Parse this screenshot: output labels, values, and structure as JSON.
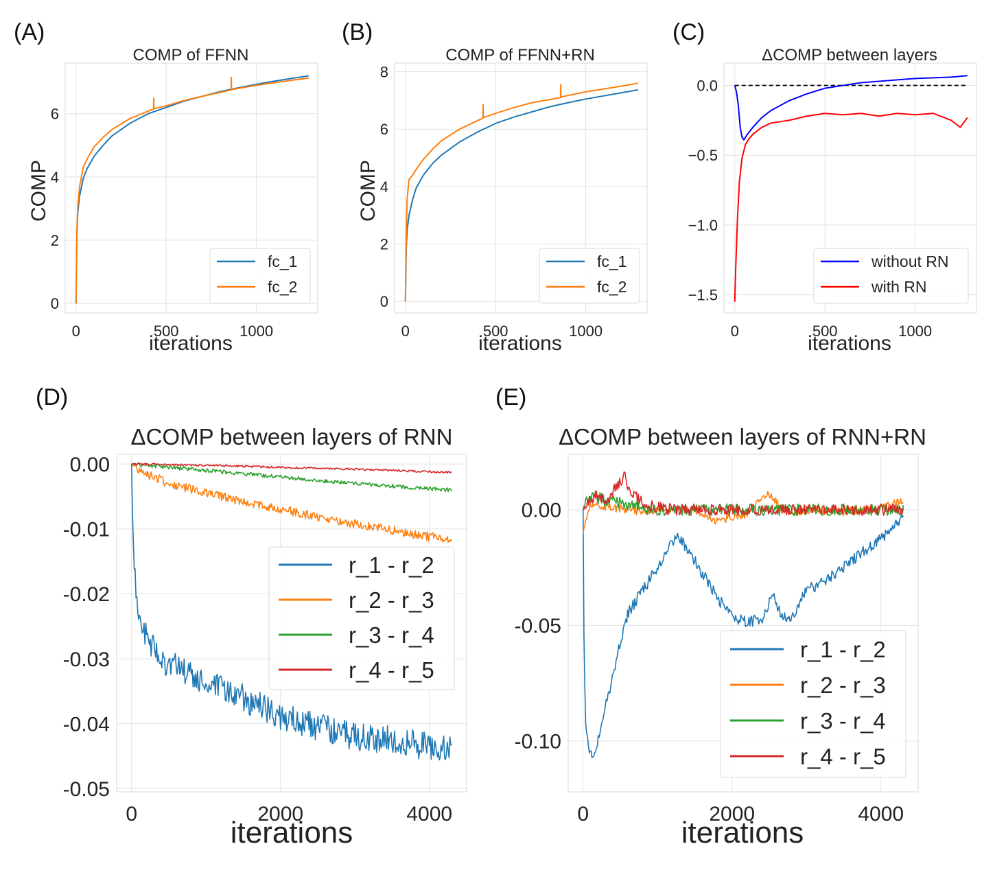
{
  "chart_data": [
    {
      "id": "A",
      "panel_label": "(A)",
      "type": "line",
      "title": "COMP of FFNN",
      "xlabel": "iterations",
      "ylabel": "COMP",
      "xlim": [
        -60,
        1340
      ],
      "ylim": [
        -0.3,
        7.6
      ],
      "xticks": [
        0,
        500,
        1000
      ],
      "xtick_labels": [
        "0",
        "500",
        "1000"
      ],
      "yticks": [
        0,
        2,
        4,
        6
      ],
      "ytick_labels": [
        "0",
        "2",
        "4",
        "6"
      ],
      "grid": true,
      "legend_position": "lower-right",
      "series": [
        {
          "name": "fc_1",
          "color": "#1f77b4",
          "x": [
            0,
            5,
            10,
            20,
            40,
            60,
            100,
            150,
            200,
            300,
            400,
            500,
            600,
            700,
            800,
            900,
            1000,
            1100,
            1200,
            1290
          ],
          "y": [
            0,
            2.2,
            2.9,
            3.4,
            3.95,
            4.25,
            4.65,
            5.0,
            5.3,
            5.7,
            6.0,
            6.2,
            6.4,
            6.55,
            6.7,
            6.82,
            6.93,
            7.03,
            7.12,
            7.2
          ]
        },
        {
          "name": "fc_2",
          "color": "#ff7f0e",
          "x": [
            0,
            5,
            10,
            20,
            40,
            60,
            100,
            150,
            200,
            300,
            400,
            430,
            431,
            432,
            500,
            600,
            700,
            860,
            861,
            862,
            900,
            1000,
            1100,
            1200,
            1290
          ],
          "y": [
            0,
            2.3,
            3.1,
            3.7,
            4.3,
            4.55,
            4.95,
            5.25,
            5.5,
            5.85,
            6.08,
            6.15,
            6.5,
            6.16,
            6.25,
            6.42,
            6.55,
            6.75,
            7.15,
            6.76,
            6.8,
            6.9,
            6.98,
            7.06,
            7.13
          ]
        }
      ]
    },
    {
      "id": "B",
      "panel_label": "(B)",
      "type": "line",
      "title": "COMP of FFNN+RN",
      "xlabel": "iterations",
      "ylabel": "COMP",
      "xlim": [
        -60,
        1340
      ],
      "ylim": [
        -0.4,
        8.3
      ],
      "xticks": [
        0,
        500,
        1000
      ],
      "xtick_labels": [
        "0",
        "500",
        "1000"
      ],
      "yticks": [
        0,
        2,
        4,
        6,
        8
      ],
      "ytick_labels": [
        "0",
        "2",
        "4",
        "6",
        "8"
      ],
      "grid": true,
      "legend_position": "lower-right",
      "series": [
        {
          "name": "fc_1",
          "color": "#1f77b4",
          "x": [
            0,
            5,
            10,
            20,
            40,
            60,
            100,
            150,
            200,
            300,
            400,
            500,
            600,
            700,
            800,
            900,
            1000,
            1100,
            1200,
            1290
          ],
          "y": [
            0,
            1.9,
            2.5,
            3.0,
            3.55,
            3.95,
            4.4,
            4.8,
            5.1,
            5.55,
            5.9,
            6.2,
            6.42,
            6.6,
            6.78,
            6.92,
            7.05,
            7.16,
            7.27,
            7.37
          ]
        },
        {
          "name": "fc_2",
          "color": "#ff7f0e",
          "x": [
            0,
            5,
            10,
            20,
            40,
            60,
            100,
            150,
            200,
            300,
            400,
            430,
            431,
            432,
            500,
            600,
            700,
            860,
            861,
            862,
            900,
            1000,
            1100,
            1200,
            1290
          ],
          "y": [
            0,
            2.5,
            3.6,
            4.25,
            4.4,
            4.6,
            4.95,
            5.3,
            5.6,
            6.0,
            6.3,
            6.38,
            6.85,
            6.4,
            6.55,
            6.75,
            6.92,
            7.1,
            7.55,
            7.12,
            7.17,
            7.3,
            7.4,
            7.5,
            7.6
          ]
        }
      ]
    },
    {
      "id": "C",
      "panel_label": "(C)",
      "type": "line",
      "title": "ΔCOMP between layers",
      "xlabel": "iterations",
      "ylabel": "",
      "xlim": [
        -60,
        1340
      ],
      "ylim": [
        -1.63,
        0.16
      ],
      "xticks": [
        0,
        500,
        1000
      ],
      "xtick_labels": [
        "0",
        "500",
        "1000"
      ],
      "yticks": [
        0.0,
        -0.5,
        -1.0,
        -1.5
      ],
      "ytick_labels": [
        "0.0",
        "−0.5",
        "−1.0",
        "−1.5"
      ],
      "grid": true,
      "legend_position": "lower-right",
      "reference_line": {
        "y": 0.0,
        "style": "dashed",
        "color": "#000000"
      },
      "series": [
        {
          "name": "without RN",
          "color": "#0000ff",
          "x": [
            0,
            10,
            20,
            30,
            40,
            50,
            70,
            100,
            150,
            200,
            300,
            400,
            500,
            600,
            700,
            800,
            900,
            1000,
            1100,
            1200,
            1290
          ],
          "y": [
            0,
            -0.05,
            -0.15,
            -0.3,
            -0.37,
            -0.39,
            -0.35,
            -0.3,
            -0.23,
            -0.18,
            -0.11,
            -0.06,
            -0.02,
            0.0,
            0.02,
            0.03,
            0.04,
            0.05,
            0.055,
            0.06,
            0.07
          ]
        },
        {
          "name": "with RN",
          "color": "#ff0000",
          "x": [
            0,
            3,
            8,
            15,
            25,
            40,
            60,
            80,
            100,
            150,
            200,
            300,
            400,
            500,
            600,
            700,
            800,
            900,
            1000,
            1100,
            1200,
            1250,
            1290
          ],
          "y": [
            -1.55,
            -1.4,
            -1.2,
            -0.95,
            -0.7,
            -0.52,
            -0.42,
            -0.38,
            -0.35,
            -0.3,
            -0.27,
            -0.25,
            -0.22,
            -0.2,
            -0.21,
            -0.2,
            -0.22,
            -0.2,
            -0.21,
            -0.2,
            -0.25,
            -0.3,
            -0.23
          ]
        }
      ]
    },
    {
      "id": "D",
      "panel_label": "(D)",
      "type": "line",
      "title": "ΔCOMP between layers of RNN",
      "xlabel": "iterations",
      "ylabel": "",
      "xlim": [
        -200,
        4500
      ],
      "ylim": [
        -0.0505,
        0.0015
      ],
      "xticks": [
        0,
        2000,
        4000
      ],
      "xtick_labels": [
        "0",
        "2000",
        "4000"
      ],
      "yticks": [
        0.0,
        -0.01,
        -0.02,
        -0.03,
        -0.04,
        -0.05
      ],
      "ytick_labels": [
        "0.00",
        "-0.01",
        "-0.02",
        "-0.03",
        "-0.04",
        "-0.05"
      ],
      "grid": true,
      "legend_position": "center-right",
      "series": [
        {
          "name": "r_1 - r_2",
          "color": "#1f77b4",
          "x": [
            0,
            20,
            50,
            100,
            200,
            400,
            700,
            1000,
            1500,
            2000,
            2500,
            3000,
            3500,
            4000,
            4300
          ],
          "y": [
            0,
            -0.012,
            -0.018,
            -0.023,
            -0.027,
            -0.03,
            -0.032,
            -0.034,
            -0.036,
            -0.039,
            -0.0405,
            -0.042,
            -0.0425,
            -0.0435,
            -0.044
          ],
          "noise": 0.0022
        },
        {
          "name": "r_2 - r_3",
          "color": "#ff7f0e",
          "x": [
            0,
            200,
            500,
            1000,
            1500,
            2000,
            2500,
            3000,
            3500,
            4000,
            4300
          ],
          "y": [
            0,
            -0.0015,
            -0.003,
            -0.0045,
            -0.0058,
            -0.007,
            -0.0081,
            -0.0092,
            -0.0102,
            -0.0112,
            -0.0118
          ],
          "noise": 0.0007
        },
        {
          "name": "r_3 - r_4",
          "color": "#2ca02c",
          "x": [
            0,
            500,
            1000,
            2000,
            3000,
            4000,
            4300
          ],
          "y": [
            0,
            -0.0005,
            -0.001,
            -0.002,
            -0.003,
            -0.0038,
            -0.004
          ],
          "noise": 0.0003
        },
        {
          "name": "r_4 - r_5",
          "color": "#d62728",
          "x": [
            0,
            1000,
            2000,
            3000,
            4000,
            4300
          ],
          "y": [
            0,
            -0.0002,
            -0.0005,
            -0.0008,
            -0.0012,
            -0.0013
          ],
          "noise": 0.00015
        }
      ]
    },
    {
      "id": "E",
      "panel_label": "(E)",
      "type": "line",
      "title": "ΔCOMP between layers of RNN+RN",
      "xlabel": "iterations",
      "ylabel": "",
      "xlim": [
        -200,
        4500
      ],
      "ylim": [
        -0.122,
        0.024
      ],
      "xticks": [
        0,
        2000,
        4000
      ],
      "xtick_labels": [
        "0",
        "2000",
        "4000"
      ],
      "yticks": [
        0.0,
        -0.05,
        -0.1
      ],
      "ytick_labels": [
        "0.00",
        "-0.05",
        "-0.10"
      ],
      "grid": true,
      "legend_position": "lower-right",
      "series": [
        {
          "name": "r_1 - r_2",
          "color": "#1f77b4",
          "x": [
            0,
            10,
            30,
            60,
            100,
            150,
            200,
            300,
            400,
            500,
            600,
            800,
            1000,
            1200,
            1300,
            1500,
            1800,
            2000,
            2200,
            2400,
            2500,
            2550,
            2600,
            2700,
            2800,
            3000,
            3300,
            3600,
            3900,
            4200,
            4300
          ],
          "y": [
            0,
            -0.05,
            -0.09,
            -0.1,
            -0.107,
            -0.104,
            -0.1,
            -0.085,
            -0.072,
            -0.057,
            -0.045,
            -0.035,
            -0.025,
            -0.014,
            -0.012,
            -0.022,
            -0.038,
            -0.046,
            -0.049,
            -0.047,
            -0.04,
            -0.036,
            -0.042,
            -0.046,
            -0.047,
            -0.035,
            -0.03,
            -0.022,
            -0.015,
            -0.007,
            -0.002
          ],
          "noise": 0.0025
        },
        {
          "name": "r_2 - r_3",
          "color": "#ff7f0e",
          "x": [
            0,
            30,
            100,
            200,
            400,
            600,
            800,
            1000,
            1500,
            1800,
            2000,
            2200,
            2400,
            2500,
            2600,
            2800,
            3000,
            3500,
            4000,
            4300
          ],
          "y": [
            -0.01,
            -0.005,
            0.003,
            0.002,
            0.001,
            0.0,
            -0.001,
            0.0,
            0.0,
            -0.005,
            -0.003,
            -0.002,
            0.005,
            0.007,
            0.003,
            -0.002,
            0.0,
            -0.001,
            0.001,
            0.004
          ],
          "noise": 0.0018
        },
        {
          "name": "r_3 - r_4",
          "color": "#2ca02c",
          "x": [
            0,
            50,
            150,
            300,
            500,
            700,
            900,
            1200,
            2000,
            3000,
            4300
          ],
          "y": [
            0,
            0.005,
            0.006,
            0.004,
            0.003,
            0.001,
            0.0,
            0.0,
            0.0,
            0.0,
            0.0
          ],
          "noise": 0.0025
        },
        {
          "name": "r_4 - r_5",
          "color": "#d62728",
          "x": [
            0,
            100,
            200,
            300,
            400,
            500,
            550,
            600,
            700,
            800,
            1000,
            1200,
            2000,
            3000,
            4300
          ],
          "y": [
            0,
            0.004,
            0.006,
            0.003,
            0.008,
            0.012,
            0.015,
            0.01,
            0.006,
            0.003,
            0.001,
            0.0,
            0.0,
            0.0,
            0.0
          ],
          "noise": 0.0025
        }
      ]
    }
  ]
}
